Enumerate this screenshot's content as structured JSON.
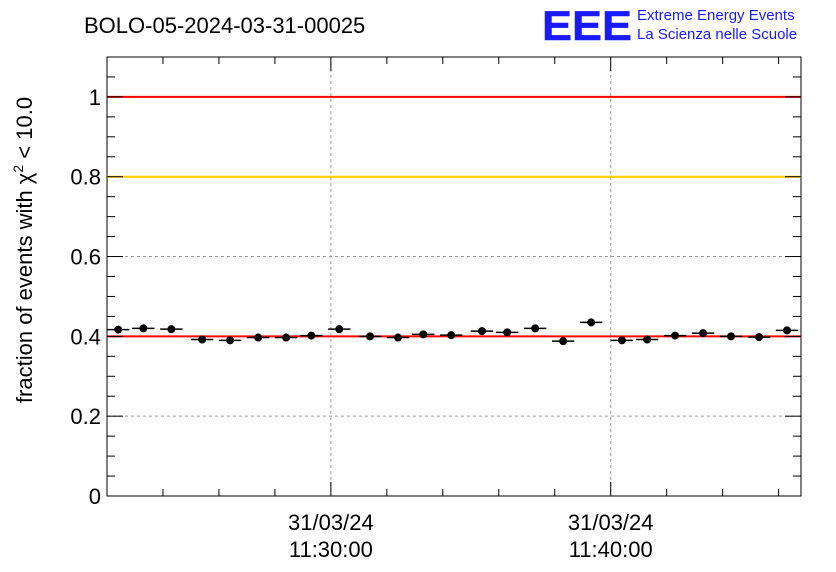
{
  "header": {
    "title": "BOLO-05-2024-03-31-00025",
    "logo_text": "EEE",
    "logo_line1": "Extreme Energy Events",
    "logo_line2": "La Scienza nelle Scuole"
  },
  "colors": {
    "logo_blue": "#1a1aff",
    "marker": "#000000",
    "grid": "#9a9a9a",
    "red_line": "#ff0000",
    "yellow_line": "#ffcc00"
  },
  "chart_data": {
    "type": "scatter",
    "title": "BOLO-05-2024-03-31-00025",
    "ylabel_prefix": "fraction of events with ",
    "ylabel_symbol": "χ",
    "ylabel_exponent": "2",
    "ylabel_suffix": " < 10.0",
    "ylim": [
      0,
      1.1
    ],
    "yticks": [
      {
        "value": 0,
        "label": "0"
      },
      {
        "value": 0.2,
        "label": "0.2"
      },
      {
        "value": 0.4,
        "label": "0.4"
      },
      {
        "value": 0.6,
        "label": "0.6"
      },
      {
        "value": 0.8,
        "label": "0.8"
      },
      {
        "value": 1,
        "label": "1"
      }
    ],
    "xlim_minutes": [
      0,
      24.8
    ],
    "xticks": [
      {
        "minute": 8.0,
        "date": "31/03/24",
        "time": "11:30:00"
      },
      {
        "minute": 18.0,
        "date": "31/03/24",
        "time": "11:40:00"
      }
    ],
    "grid": true,
    "reference_lines": [
      {
        "y": 1.0,
        "color": "#ff0000"
      },
      {
        "y": 0.8,
        "color": "#ffcc00"
      },
      {
        "y": 0.4,
        "color": "#ff0000"
      }
    ],
    "series": [
      {
        "bin_width_minutes": 0.8,
        "points": [
          {
            "x": 0.4,
            "y": 0.417
          },
          {
            "x": 1.3,
            "y": 0.42
          },
          {
            "x": 2.3,
            "y": 0.418
          },
          {
            "x": 3.4,
            "y": 0.392
          },
          {
            "x": 4.4,
            "y": 0.39
          },
          {
            "x": 5.4,
            "y": 0.397
          },
          {
            "x": 6.4,
            "y": 0.397
          },
          {
            "x": 7.3,
            "y": 0.402
          },
          {
            "x": 8.3,
            "y": 0.418
          },
          {
            "x": 9.4,
            "y": 0.4
          },
          {
            "x": 10.4,
            "y": 0.397
          },
          {
            "x": 11.3,
            "y": 0.405
          },
          {
            "x": 12.3,
            "y": 0.403
          },
          {
            "x": 13.4,
            "y": 0.413
          },
          {
            "x": 14.3,
            "y": 0.41
          },
          {
            "x": 15.3,
            "y": 0.42
          },
          {
            "x": 16.3,
            "y": 0.388
          },
          {
            "x": 17.3,
            "y": 0.435
          },
          {
            "x": 18.4,
            "y": 0.39
          },
          {
            "x": 19.3,
            "y": 0.392
          },
          {
            "x": 20.3,
            "y": 0.402
          },
          {
            "x": 21.3,
            "y": 0.408
          },
          {
            "x": 22.3,
            "y": 0.4
          },
          {
            "x": 23.3,
            "y": 0.398
          },
          {
            "x": 24.3,
            "y": 0.415
          }
        ]
      }
    ]
  }
}
